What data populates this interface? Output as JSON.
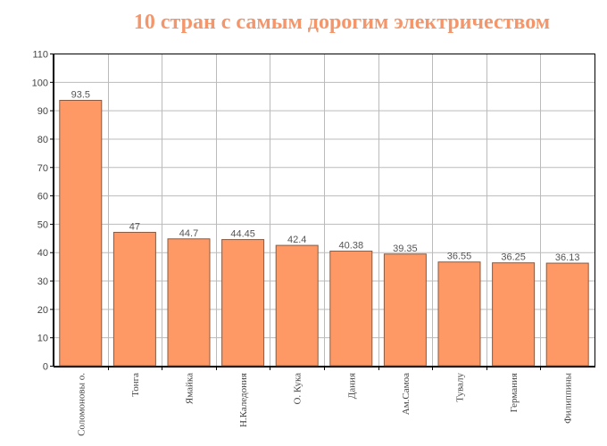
{
  "chart_data": {
    "type": "bar",
    "title": "10 стран с самым дорогим электричеством",
    "xlabel": "",
    "ylabel": "",
    "ylim": [
      0,
      110
    ],
    "yticks": [
      0,
      10,
      20,
      30,
      40,
      50,
      60,
      70,
      80,
      90,
      100,
      110
    ],
    "grid": true,
    "categories": [
      "Соломоновы о.",
      "Тонга",
      "Ямайка",
      "Н.Каледония",
      "О. Кука",
      "Дания",
      "Ам.Самоа",
      "Тувалу",
      "Германия",
      "Филиппины"
    ],
    "values": [
      93.5,
      47,
      44.7,
      44.45,
      42.4,
      40.38,
      39.35,
      36.55,
      36.25,
      36.13
    ],
    "value_labels": [
      "93.5",
      "47",
      "44.7",
      "44.45",
      "42.4",
      "40.38",
      "39.35",
      "36.55",
      "36.25",
      "36.13"
    ],
    "colors": {
      "bar": "#fe9966",
      "bar_border": "#8a5a40",
      "title": "#f4956a"
    }
  }
}
